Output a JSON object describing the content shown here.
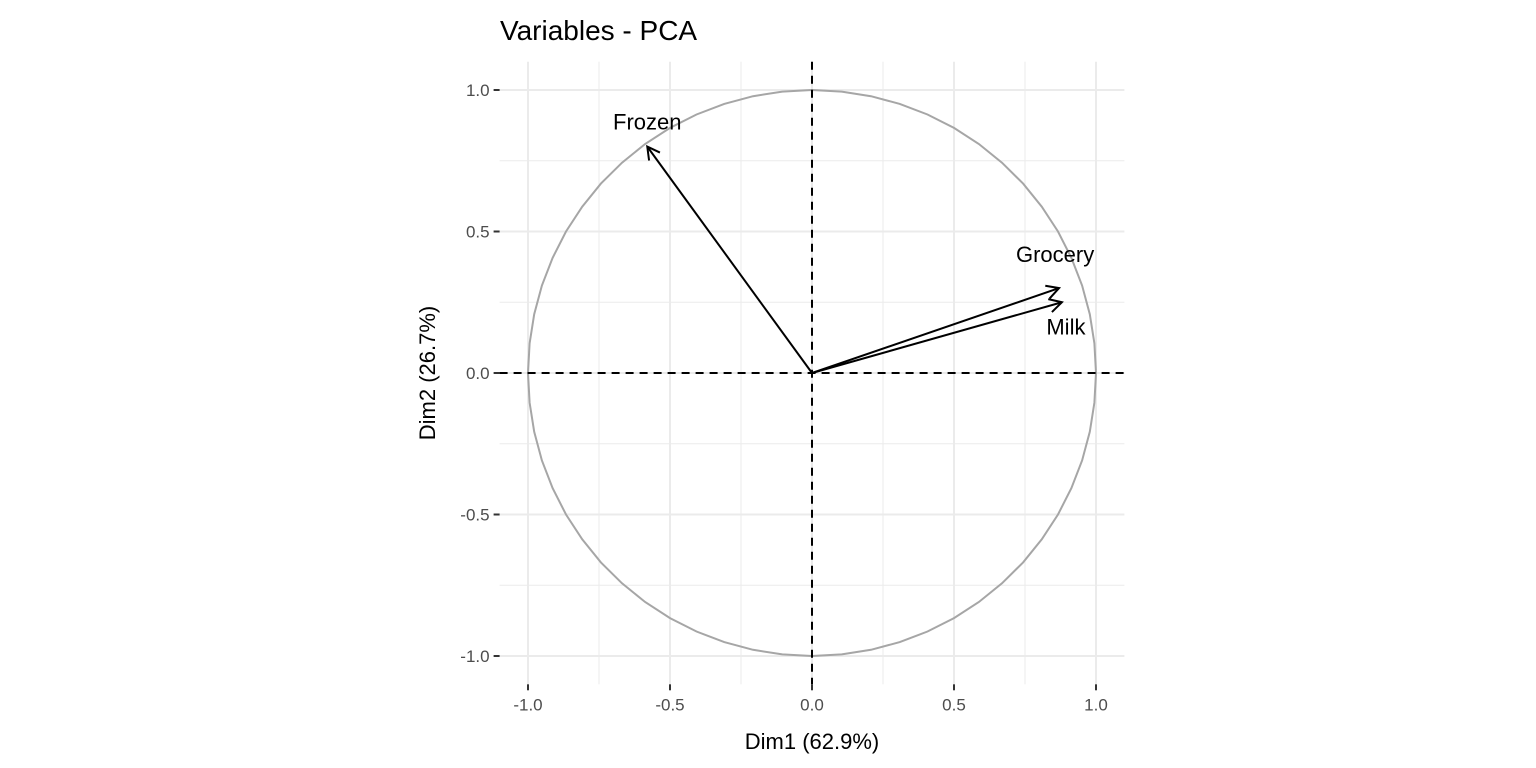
{
  "chart_data": {
    "type": "scatter",
    "subtype": "pca-variable-correlation-circle",
    "title": "Variables - PCA",
    "xlabel": "Dim1 (62.9%)",
    "ylabel": "Dim2 (26.7%)",
    "xlim": [
      -1.1,
      1.1
    ],
    "ylim": [
      -1.1,
      1.1
    ],
    "xticks": [
      -1.0,
      -0.5,
      0.0,
      0.5,
      1.0
    ],
    "yticks": [
      -1.0,
      -0.5,
      0.0,
      0.5,
      1.0
    ],
    "xtick_labels": [
      "-1.0",
      "-0.5",
      "0.0",
      "0.5",
      "1.0"
    ],
    "ytick_labels": [
      "-1.0",
      "-0.5",
      "0.0",
      "0.5",
      "1.0"
    ],
    "grid": true,
    "variables": [
      {
        "name": "Frozen",
        "x": -0.58,
        "y": 0.8
      },
      {
        "name": "Grocery",
        "x": 0.87,
        "y": 0.3
      },
      {
        "name": "Milk",
        "x": 0.88,
        "y": 0.25
      }
    ],
    "colors": {
      "arrow": "#000000",
      "circle": "#a6a6a6",
      "grid": "#ebebeb"
    }
  }
}
